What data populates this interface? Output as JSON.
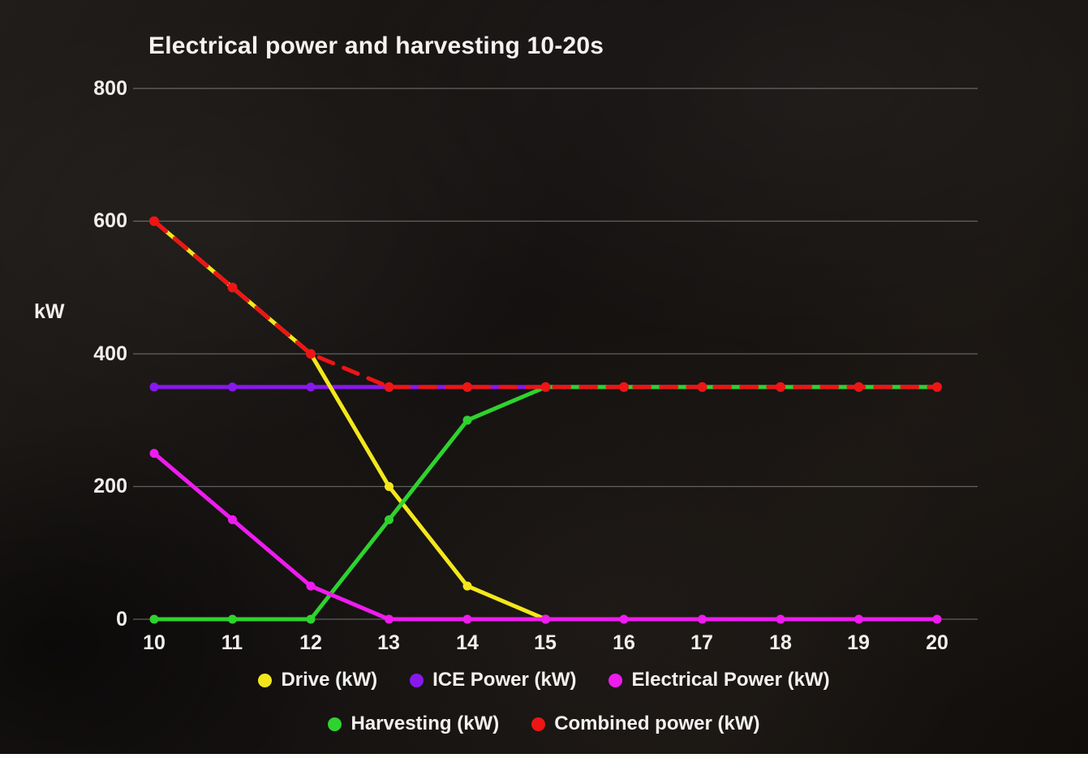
{
  "chart_data": {
    "type": "line",
    "title": "Electrical power and harvesting 10-20s",
    "xlabel": "",
    "ylabel": "kW",
    "x": [
      10,
      11,
      12,
      13,
      14,
      15,
      16,
      17,
      18,
      19,
      20
    ],
    "ylim": [
      0,
      800
    ],
    "yticks": [
      800,
      600,
      400,
      200,
      0
    ],
    "grid": true,
    "legend_position": "bottom",
    "draw_order": [
      1,
      0,
      3,
      2,
      4
    ],
    "series": [
      {
        "name": "Drive (kW)",
        "color": "#f3e71c",
        "style": "solid",
        "values": [
          600,
          500,
          400,
          200,
          50,
          0,
          null,
          null,
          null,
          null,
          null
        ]
      },
      {
        "name": "ICE Power (kW)",
        "color": "#8818ee",
        "style": "solid",
        "values": [
          350,
          350,
          350,
          350,
          350,
          350,
          350,
          350,
          350,
          350,
          350
        ]
      },
      {
        "name": "Electrical Power (kW)",
        "color": "#ee1cee",
        "style": "solid",
        "values": [
          250,
          150,
          50,
          0,
          0,
          0,
          0,
          0,
          0,
          0,
          0
        ]
      },
      {
        "name": "Harvesting (kW)",
        "color": "#2ed32e",
        "style": "solid",
        "values": [
          0,
          0,
          0,
          150,
          300,
          350,
          350,
          350,
          350,
          350,
          350
        ]
      },
      {
        "name": "Combined power (kW)",
        "color": "#ee1515",
        "style": "dashed",
        "values": [
          600,
          500,
          400,
          350,
          350,
          350,
          350,
          350,
          350,
          350,
          350
        ]
      }
    ]
  }
}
